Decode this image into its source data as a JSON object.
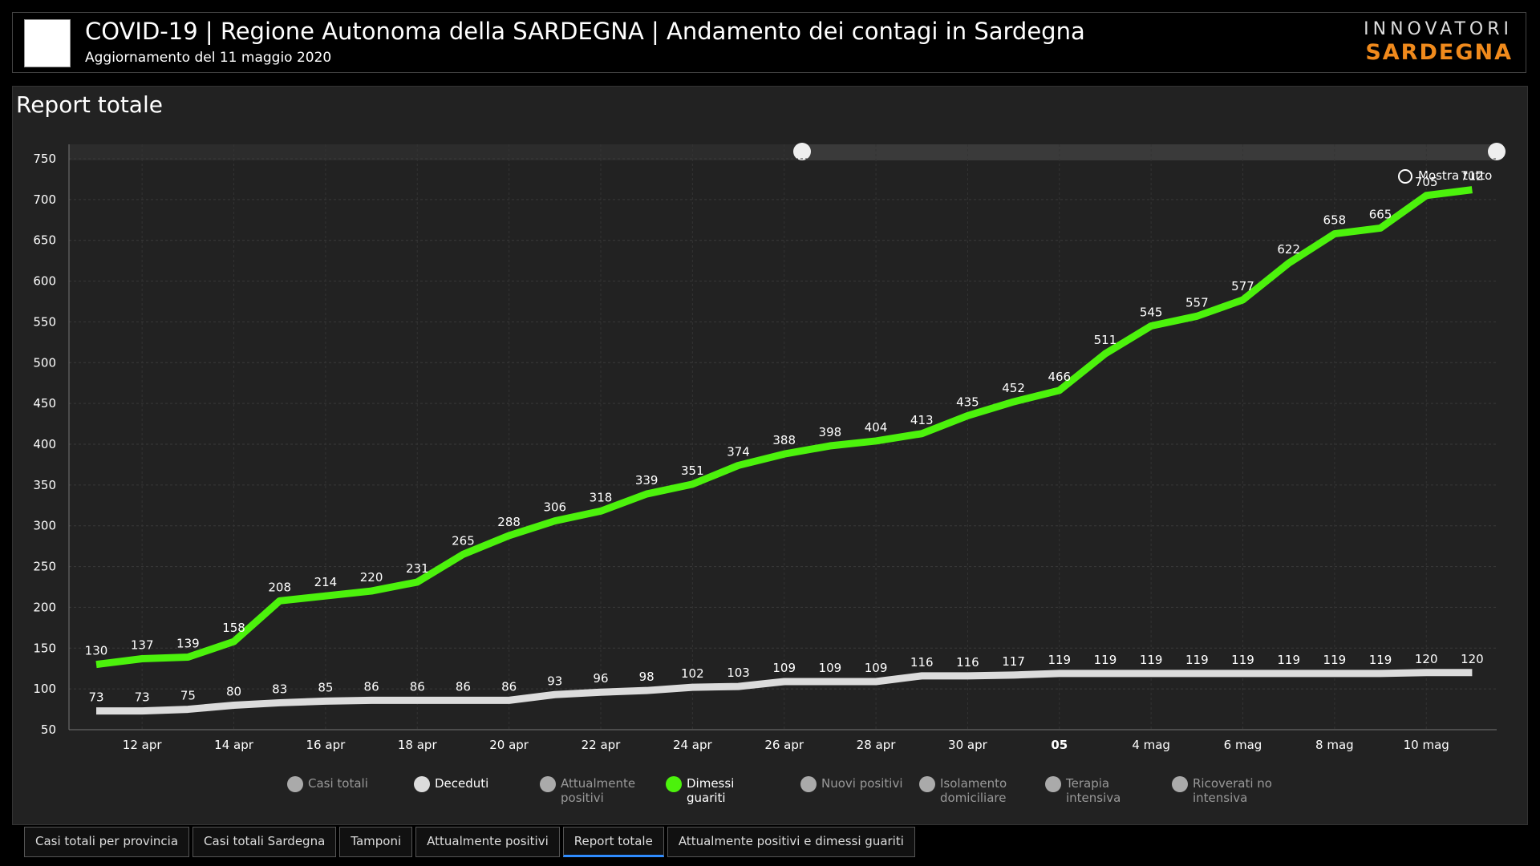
{
  "header": {
    "title": "COVID-19 | Regione Autonoma della SARDEGNA | Andamento dei contagi in Sardegna",
    "subtitle": "Aggiornamento del 11 maggio 2020",
    "brand_top": "INNOVATORI",
    "brand_bottom": "SARDEGNA"
  },
  "panel_title": "Report totale",
  "zoom_button": "Mostra tutto",
  "chart_data": {
    "type": "line",
    "categories": [
      null,
      "12 apr",
      null,
      "14 apr",
      null,
      "16 apr",
      null,
      "18 apr",
      null,
      "20 apr",
      null,
      "22 apr",
      null,
      "24 apr",
      null,
      "26 apr",
      null,
      "28 apr",
      null,
      "30 apr",
      null,
      "05",
      null,
      "4 mag",
      null,
      "6 mag",
      null,
      "8 mag",
      null,
      "10 mag",
      null
    ],
    "series": [
      {
        "name": "Deceduti",
        "color": "#dcdcdc",
        "values": [
          73,
          73,
          75,
          80,
          83,
          85,
          86,
          86,
          86,
          86,
          93,
          96,
          98,
          102,
          103,
          109,
          109,
          109,
          116,
          116,
          117,
          119,
          119,
          119,
          119,
          119,
          119,
          119,
          119,
          120,
          120
        ]
      },
      {
        "name": "Dimessi guariti",
        "color": "#4cf20c",
        "values": [
          130,
          137,
          139,
          158,
          208,
          214,
          220,
          231,
          265,
          288,
          306,
          318,
          339,
          351,
          374,
          388,
          398,
          404,
          413,
          435,
          452,
          466,
          511,
          545,
          557,
          577,
          622,
          658,
          665,
          705,
          712
        ]
      }
    ],
    "hidden_series": [
      "Casi totali",
      "Attualmente positivi",
      "Nuovi positivi",
      "Isolamento domiciliare",
      "Terapia intensiva",
      "Ricoverati no intensiva"
    ],
    "ylim": [
      50,
      750
    ],
    "yticks": [
      50,
      100,
      150,
      200,
      250,
      300,
      350,
      400,
      450,
      500,
      550,
      600,
      650,
      700,
      750
    ],
    "grid": true
  },
  "tabs": {
    "items": [
      "Casi totali per provincia",
      "Casi totali Sardegna",
      "Tamponi",
      "Attualmente positivi",
      "Report totale",
      "Attualmente positivi e dimessi guariti"
    ],
    "active": 4
  }
}
